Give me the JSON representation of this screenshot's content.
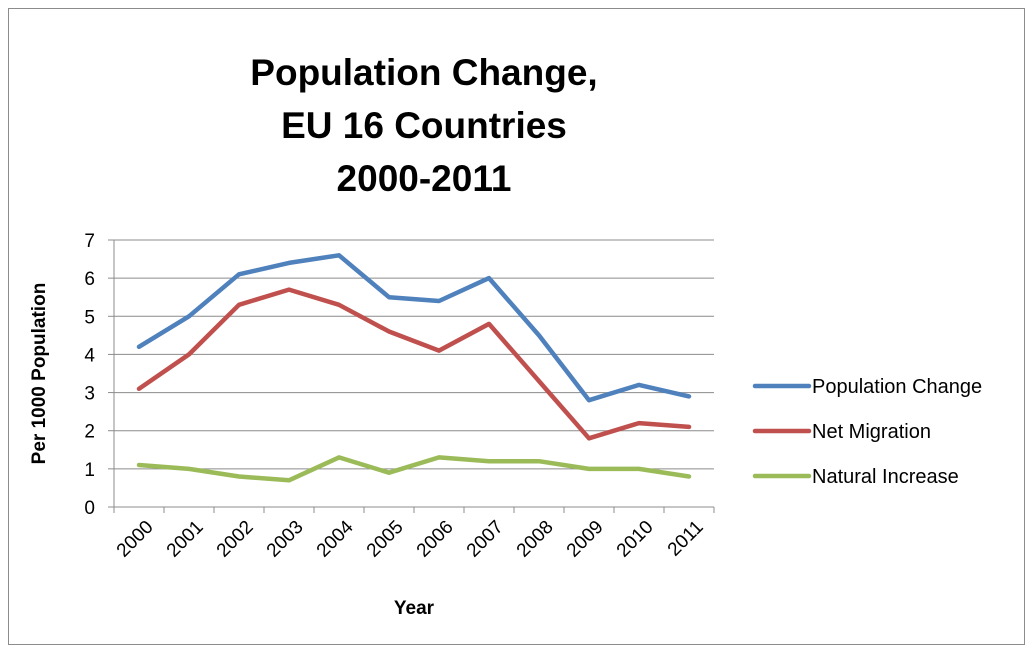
{
  "chart_data": {
    "type": "line",
    "title_lines": [
      "Population Change,",
      "EU 16 Countries",
      "2000-2011"
    ],
    "xlabel": "Year",
    "ylabel": "Per 1000 Population",
    "categories": [
      "2000",
      "2001",
      "2002",
      "2003",
      "2004",
      "2005",
      "2006",
      "2007",
      "2008",
      "2009",
      "2010",
      "2011"
    ],
    "ylim": [
      0,
      7
    ],
    "yticks": [
      "0",
      "1",
      "2",
      "3",
      "4",
      "5",
      "6",
      "7"
    ],
    "grid": true,
    "legend_position": "right",
    "series": [
      {
        "name": "Population Change",
        "color": "#4f81bd",
        "values": [
          4.2,
          5.0,
          6.1,
          6.4,
          6.6,
          5.5,
          5.4,
          6.0,
          4.5,
          2.8,
          3.2,
          2.9
        ]
      },
      {
        "name": "Net Migration",
        "color": "#c0504d",
        "values": [
          3.1,
          4.0,
          5.3,
          5.7,
          5.3,
          4.6,
          4.1,
          4.8,
          3.3,
          1.8,
          2.2,
          2.1
        ]
      },
      {
        "name": "Natural Increase",
        "color": "#9bbb59",
        "values": [
          1.1,
          1.0,
          0.8,
          0.7,
          1.3,
          0.9,
          1.3,
          1.2,
          1.2,
          1.0,
          1.0,
          0.8
        ]
      }
    ]
  }
}
